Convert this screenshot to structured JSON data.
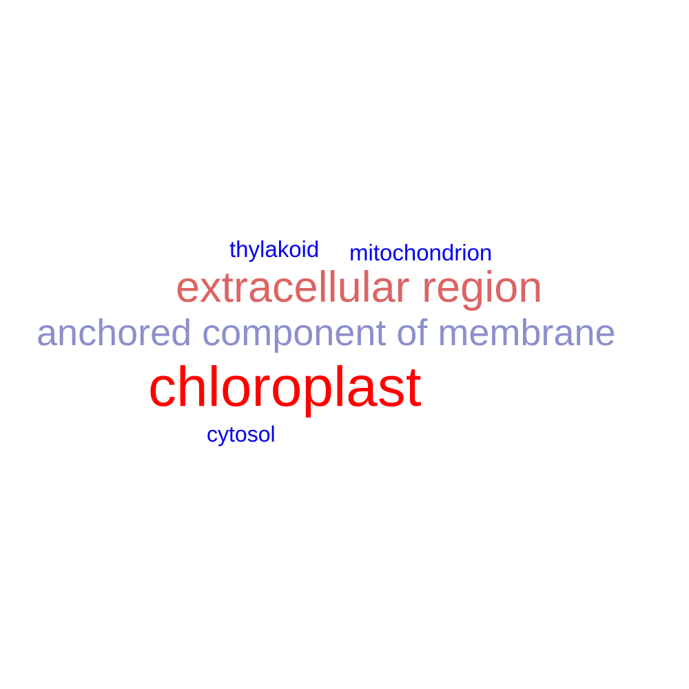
{
  "words": [
    {
      "text": "thylakoid",
      "color": "#0000ee"
    },
    {
      "text": "mitochondrion",
      "color": "#0000ee"
    },
    {
      "text": "extracellular region",
      "color": "#dc6464"
    },
    {
      "text": "anchored component of membrane",
      "color": "#8c8fcc"
    },
    {
      "text": "chloroplast",
      "color": "#ff0000"
    },
    {
      "text": "cytosol",
      "color": "#0000ee"
    }
  ]
}
